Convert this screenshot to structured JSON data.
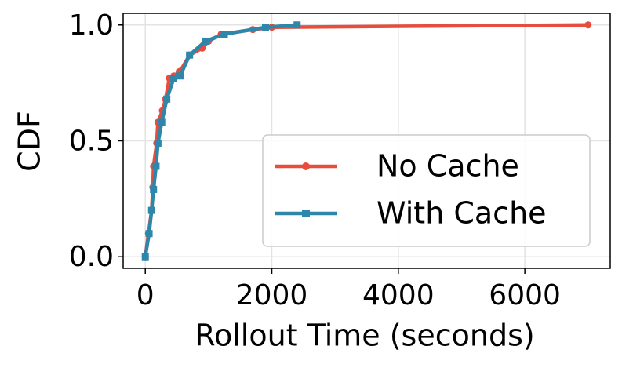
{
  "chart_data": {
    "type": "line",
    "xlabel": "Rollout Time (seconds)",
    "ylabel": "CDF",
    "xlim": [
      -350,
      7350
    ],
    "ylim": [
      -0.05,
      1.05
    ],
    "xticks": [
      0,
      2000,
      4000,
      6000
    ],
    "yticks": [
      {
        "value": 0,
        "label": "0.0"
      },
      0.5,
      {
        "value": 1,
        "label": "1.0"
      }
    ],
    "grid": true,
    "legend": "lower right",
    "series": [
      {
        "name": "No Cache",
        "color": "#e74c3c",
        "marker": "circle",
        "x": [
          0,
          50,
          100,
          120,
          130,
          180,
          200,
          270,
          320,
          380,
          450,
          550,
          700,
          900,
          1000,
          1200,
          1700,
          2000,
          7000
        ],
        "values": [
          0,
          0.1,
          0.2,
          0.3,
          0.39,
          0.49,
          0.58,
          0.63,
          0.68,
          0.77,
          0.78,
          0.8,
          0.87,
          0.9,
          0.93,
          0.96,
          0.98,
          0.99,
          1.0
        ]
      },
      {
        "name": "With Cache",
        "color": "#2e86ab",
        "marker": "square",
        "x": [
          0,
          60,
          100,
          130,
          170,
          200,
          260,
          340,
          450,
          550,
          700,
          950,
          1250,
          1900,
          2400
        ],
        "values": [
          0,
          0.1,
          0.2,
          0.29,
          0.39,
          0.49,
          0.58,
          0.68,
          0.77,
          0.78,
          0.87,
          0.93,
          0.96,
          0.99,
          1.0
        ]
      }
    ]
  }
}
